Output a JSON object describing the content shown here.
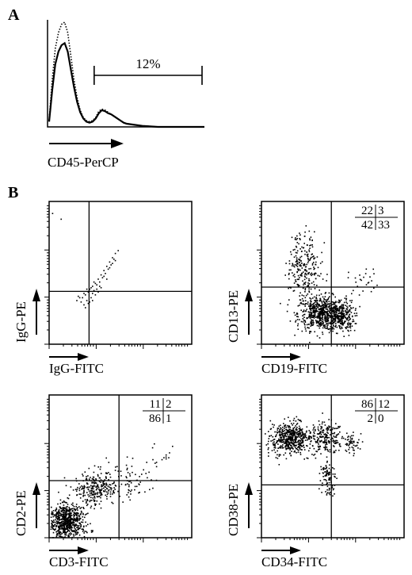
{
  "figure": {
    "panel_a_letter": "A",
    "panel_b_letter": "B"
  },
  "chart_data": [
    {
      "type": "histogram",
      "panel": "A",
      "xlabel": "CD45-PerCP",
      "ylabel": "",
      "gate_label": "12%",
      "gate_range_fraction": [
        0.29,
        1.0
      ],
      "series": [
        {
          "name": "",
          "style": "solid",
          "x": [
            0.0,
            0.02,
            0.04,
            0.06,
            0.08,
            0.1,
            0.12,
            0.14,
            0.16,
            0.18,
            0.2,
            0.22,
            0.24,
            0.26,
            0.28,
            0.3,
            0.32,
            0.34,
            0.36,
            0.38,
            0.4,
            0.42,
            0.44,
            0.46,
            0.48,
            0.5,
            0.55,
            0.6,
            0.65,
            0.7,
            1.0
          ],
          "y": [
            0.05,
            0.35,
            0.6,
            0.72,
            0.78,
            0.8,
            0.72,
            0.55,
            0.38,
            0.24,
            0.14,
            0.08,
            0.05,
            0.04,
            0.05,
            0.08,
            0.13,
            0.16,
            0.15,
            0.13,
            0.12,
            0.1,
            0.08,
            0.06,
            0.04,
            0.03,
            0.02,
            0.01,
            0.005,
            0.0,
            0.0
          ]
        },
        {
          "name": "",
          "style": "dotted",
          "x": [
            0.0,
            0.02,
            0.04,
            0.06,
            0.08,
            0.1,
            0.12,
            0.14,
            0.16,
            0.18,
            0.2,
            0.22,
            0.24,
            0.26,
            0.28,
            0.3,
            0.32,
            0.34,
            0.36,
            0.38,
            0.4,
            0.42,
            0.44,
            0.46,
            0.48,
            0.5,
            0.55,
            0.6,
            0.65,
            0.7,
            1.0
          ],
          "y": [
            0.06,
            0.45,
            0.75,
            0.9,
            0.98,
            1.0,
            0.9,
            0.68,
            0.45,
            0.28,
            0.16,
            0.09,
            0.06,
            0.05,
            0.06,
            0.09,
            0.15,
            0.17,
            0.16,
            0.14,
            0.12,
            0.1,
            0.08,
            0.06,
            0.04,
            0.03,
            0.02,
            0.01,
            0.005,
            0.0,
            0.0
          ]
        }
      ]
    },
    {
      "type": "scatter",
      "panel": "B1",
      "xlabel": "IgG-FITC",
      "ylabel": "IgG-PE",
      "quadrant_gate": [
        0.28,
        0.37
      ],
      "quadrant_values": null,
      "points": [
        [
          0.23,
          0.33
        ],
        [
          0.25,
          0.35
        ],
        [
          0.27,
          0.37
        ],
        [
          0.28,
          0.39
        ],
        [
          0.3,
          0.41
        ],
        [
          0.32,
          0.43
        ],
        [
          0.34,
          0.46
        ],
        [
          0.36,
          0.49
        ],
        [
          0.38,
          0.52
        ],
        [
          0.4,
          0.55
        ],
        [
          0.42,
          0.58
        ],
        [
          0.44,
          0.61
        ],
        [
          0.46,
          0.64
        ],
        [
          0.48,
          0.66
        ],
        [
          0.3,
          0.36
        ],
        [
          0.26,
          0.31
        ],
        [
          0.22,
          0.3
        ],
        [
          0.24,
          0.28
        ],
        [
          0.28,
          0.3
        ],
        [
          0.33,
          0.39
        ],
        [
          0.35,
          0.44
        ],
        [
          0.37,
          0.47
        ],
        [
          0.39,
          0.5
        ],
        [
          0.41,
          0.53
        ],
        [
          0.43,
          0.56
        ],
        [
          0.45,
          0.6
        ],
        [
          0.31,
          0.38
        ],
        [
          0.29,
          0.33
        ],
        [
          0.27,
          0.29
        ],
        [
          0.21,
          0.33
        ],
        [
          0.19,
          0.31
        ],
        [
          0.25,
          0.26
        ],
        [
          0.32,
          0.35
        ],
        [
          0.36,
          0.4
        ],
        [
          0.4,
          0.46
        ],
        [
          0.34,
          0.37
        ],
        [
          0.38,
          0.48
        ],
        [
          0.42,
          0.54
        ],
        [
          0.44,
          0.57
        ],
        [
          0.46,
          0.59
        ],
        [
          0.08,
          0.88
        ],
        [
          0.02,
          0.92
        ],
        [
          0.3,
          0.31
        ],
        [
          0.26,
          0.39
        ],
        [
          0.24,
          0.36
        ],
        [
          0.2,
          0.34
        ],
        [
          0.33,
          0.42
        ],
        [
          0.35,
          0.41
        ],
        [
          0.29,
          0.4
        ],
        [
          0.31,
          0.44
        ]
      ],
      "cluster_seed": 0
    },
    {
      "type": "scatter",
      "panel": "B2",
      "xlabel": "CD19-FITC",
      "ylabel": "CD13-PE",
      "quadrant_gate": [
        0.49,
        0.4
      ],
      "quadrant_values": {
        "ul": 22,
        "ur": 3,
        "ll": 42,
        "lr": 33
      },
      "clusters": [
        {
          "cx": 0.3,
          "cy": 0.55,
          "sx": 0.09,
          "sy": 0.2,
          "n": 260
        },
        {
          "cx": 0.42,
          "cy": 0.22,
          "sx": 0.14,
          "sy": 0.1,
          "n": 620
        },
        {
          "cx": 0.55,
          "cy": 0.2,
          "sx": 0.08,
          "sy": 0.09,
          "n": 260
        },
        {
          "cx": 0.72,
          "cy": 0.45,
          "sx": 0.1,
          "sy": 0.08,
          "n": 25
        }
      ],
      "cluster_seed": 11
    },
    {
      "type": "scatter",
      "panel": "B3",
      "xlabel": "CD3-FITC",
      "ylabel": "CD2-PE",
      "quadrant_gate": [
        0.49,
        0.4
      ],
      "quadrant_values": {
        "ul": 11,
        "ur": 2,
        "ll": 86,
        "lr": 1
      },
      "clusters": [
        {
          "cx": 0.12,
          "cy": 0.12,
          "sx": 0.1,
          "sy": 0.1,
          "n": 700
        },
        {
          "cx": 0.32,
          "cy": 0.34,
          "sx": 0.12,
          "sy": 0.1,
          "n": 260
        },
        {
          "cx": 0.55,
          "cy": 0.42,
          "sx": 0.13,
          "sy": 0.12,
          "n": 70
        },
        {
          "cx": 0.78,
          "cy": 0.6,
          "sx": 0.08,
          "sy": 0.08,
          "n": 12
        }
      ],
      "cluster_seed": 23
    },
    {
      "type": "scatter",
      "panel": "B4",
      "xlabel": "CD34-FITC",
      "ylabel": "CD38-PE",
      "quadrant_gate": [
        0.49,
        0.37
      ],
      "quadrant_values": {
        "ul": 86,
        "ur": 12,
        "ll": 2,
        "lr": 0
      },
      "clusters": [
        {
          "cx": 0.2,
          "cy": 0.7,
          "sx": 0.13,
          "sy": 0.09,
          "n": 560
        },
        {
          "cx": 0.45,
          "cy": 0.7,
          "sx": 0.1,
          "sy": 0.09,
          "n": 200
        },
        {
          "cx": 0.62,
          "cy": 0.66,
          "sx": 0.06,
          "sy": 0.06,
          "n": 55
        },
        {
          "cx": 0.46,
          "cy": 0.45,
          "sx": 0.05,
          "sy": 0.08,
          "n": 70
        },
        {
          "cx": 0.47,
          "cy": 0.34,
          "sx": 0.04,
          "sy": 0.05,
          "n": 22
        }
      ],
      "cluster_seed": 37
    }
  ]
}
